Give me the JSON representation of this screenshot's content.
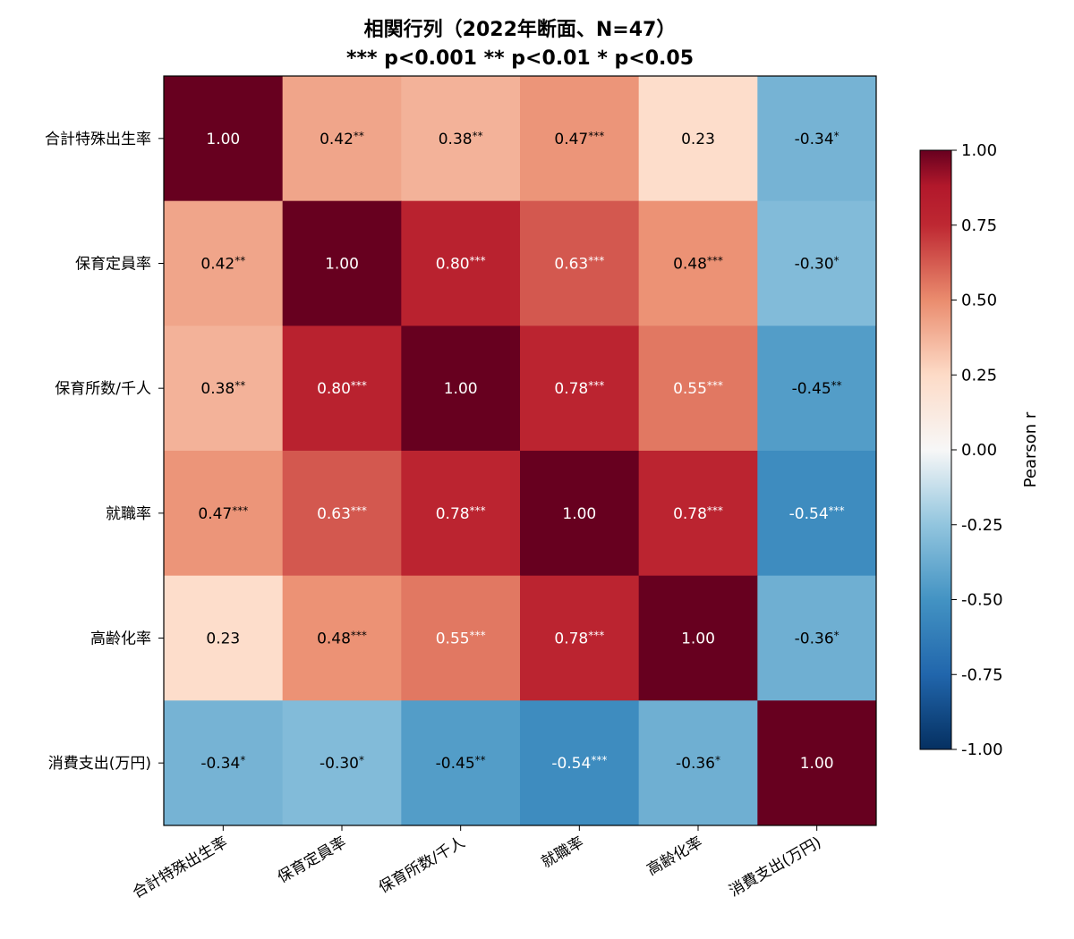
{
  "chart_data": {
    "type": "heatmap",
    "title": "相関行列（2022年断面、N=47）",
    "subtitle": "*** p<0.001  ** p<0.01  * p<0.05",
    "rows": [
      "合計特殊出生率",
      "保育定員率",
      "保育所数/千人",
      "就職率",
      "高齢化率",
      "消費支出(万円)"
    ],
    "columns": [
      "合計特殊出生率",
      "保育定員率",
      "保育所数/千人",
      "就職率",
      "高齢化率",
      "消費支出(万円)"
    ],
    "values": [
      [
        1.0,
        0.42,
        0.38,
        0.47,
        0.23,
        -0.34
      ],
      [
        0.42,
        1.0,
        0.8,
        0.63,
        0.48,
        -0.3
      ],
      [
        0.38,
        0.8,
        1.0,
        0.78,
        0.55,
        -0.45
      ],
      [
        0.47,
        0.63,
        0.78,
        1.0,
        0.78,
        -0.54
      ],
      [
        0.23,
        0.48,
        0.55,
        0.78,
        1.0,
        -0.36
      ],
      [
        -0.34,
        -0.3,
        -0.45,
        -0.54,
        -0.36,
        1.0
      ]
    ],
    "significance": [
      [
        "",
        "**",
        "**",
        "***",
        "",
        "*"
      ],
      [
        "**",
        "",
        "***",
        "***",
        "***",
        "*"
      ],
      [
        "**",
        "***",
        "",
        "***",
        "***",
        "**"
      ],
      [
        "***",
        "***",
        "***",
        "",
        "***",
        "***"
      ],
      [
        "",
        "***",
        "***",
        "***",
        "",
        "*"
      ],
      [
        "*",
        "*",
        "**",
        "***",
        "*",
        ""
      ]
    ],
    "colorscale": "RdBu_r",
    "vmin": -1.0,
    "vmax": 1.0,
    "colorbar": {
      "label": "Pearson r",
      "ticks": [
        "1.00",
        "0.75",
        "0.50",
        "0.25",
        "0.00",
        "-0.25",
        "-0.50",
        "-0.75",
        "-1.00"
      ]
    }
  }
}
